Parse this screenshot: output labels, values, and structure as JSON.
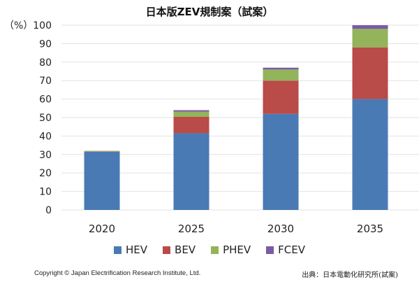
{
  "chart_data": {
    "type": "bar",
    "stacked": true,
    "title": "日本版ZEV規制案（試案）",
    "ylabel": "（%）",
    "ylim": [
      0,
      100
    ],
    "yticks": [
      0,
      10,
      20,
      30,
      40,
      50,
      60,
      70,
      80,
      90,
      100
    ],
    "grid": true,
    "legend_position": "bottom",
    "categories": [
      "2020",
      "2025",
      "2030",
      "2035"
    ],
    "series": [
      {
        "name": "HEV",
        "color": "#4a7ab4",
        "values": [
          31.5,
          41.5,
          52,
          60
        ]
      },
      {
        "name": "BEV",
        "color": "#b94b48",
        "values": [
          0.2,
          9,
          18,
          28
        ]
      },
      {
        "name": "PHEV",
        "color": "#93b45a",
        "values": [
          0.3,
          2.7,
          6,
          10
        ]
      },
      {
        "name": "FCEV",
        "color": "#7a5ca3",
        "values": [
          0,
          0.8,
          1,
          2
        ]
      }
    ]
  },
  "footer": {
    "copyright": "Copyright © Japan Electrification Research Institute, Ltd.",
    "source": "出典：日本電動化研究所(試案)"
  }
}
